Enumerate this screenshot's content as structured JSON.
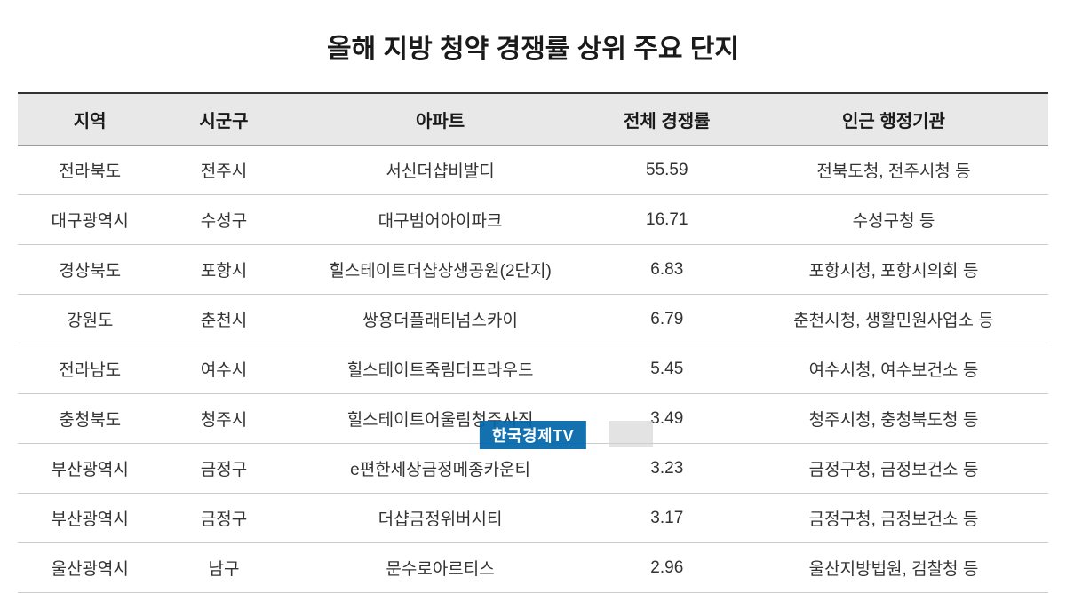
{
  "title": "올해 지방 청약 경쟁률 상위 주요 단지",
  "columns": {
    "region": "지역",
    "city": "시군구",
    "apt": "아파트",
    "ratio": "전체 경쟁률",
    "agency": "인근 행정기관"
  },
  "rows": [
    {
      "region": "전라북도",
      "city": "전주시",
      "apt": "서신더샵비발디",
      "ratio": "55.59",
      "agency": "전북도청, 전주시청 등"
    },
    {
      "region": "대구광역시",
      "city": "수성구",
      "apt": "대구범어아이파크",
      "ratio": "16.71",
      "agency": "수성구청 등"
    },
    {
      "region": "경상북도",
      "city": "포항시",
      "apt": "힐스테이트더샵상생공원(2단지)",
      "ratio": "6.83",
      "agency": "포항시청, 포항시의회 등"
    },
    {
      "region": "강원도",
      "city": "춘천시",
      "apt": "쌍용더플래티넘스카이",
      "ratio": "6.79",
      "agency": "춘천시청, 생활민원사업소 등"
    },
    {
      "region": "전라남도",
      "city": "여수시",
      "apt": "힐스테이트죽림더프라우드",
      "ratio": "5.45",
      "agency": "여수시청, 여수보건소 등"
    },
    {
      "region": "충청북도",
      "city": "청주시",
      "apt": "힐스테이트어울림청주사직",
      "ratio": "3.49",
      "agency": "청주시청, 충청북도청 등"
    },
    {
      "region": "부산광역시",
      "city": "금정구",
      "apt": "e편한세상금정메종카운티",
      "ratio": "3.23",
      "agency": "금정구청, 금정보건소 등"
    },
    {
      "region": "부산광역시",
      "city": "금정구",
      "apt": "더샵금정위버시티",
      "ratio": "3.17",
      "agency": "금정구청, 금정보건소 등"
    },
    {
      "region": "울산광역시",
      "city": "남구",
      "apt": "문수로아르티스",
      "ratio": "2.96",
      "agency": "울산지방법원, 검찰청 등"
    }
  ],
  "watermark": "한국경제TV",
  "styling": {
    "title_fontsize": 30,
    "header_fontsize": 20,
    "cell_fontsize": 19,
    "header_bg": "#e8e8e8",
    "border_top": "#333333",
    "border_row": "#cccccc",
    "text_color": "#333333",
    "watermark_bg": "#0066aa",
    "watermark_color": "#ffffff",
    "col_widths": {
      "region": "14%",
      "city": "12%",
      "apt": "30%",
      "ratio": "14%",
      "agency": "30%"
    }
  }
}
